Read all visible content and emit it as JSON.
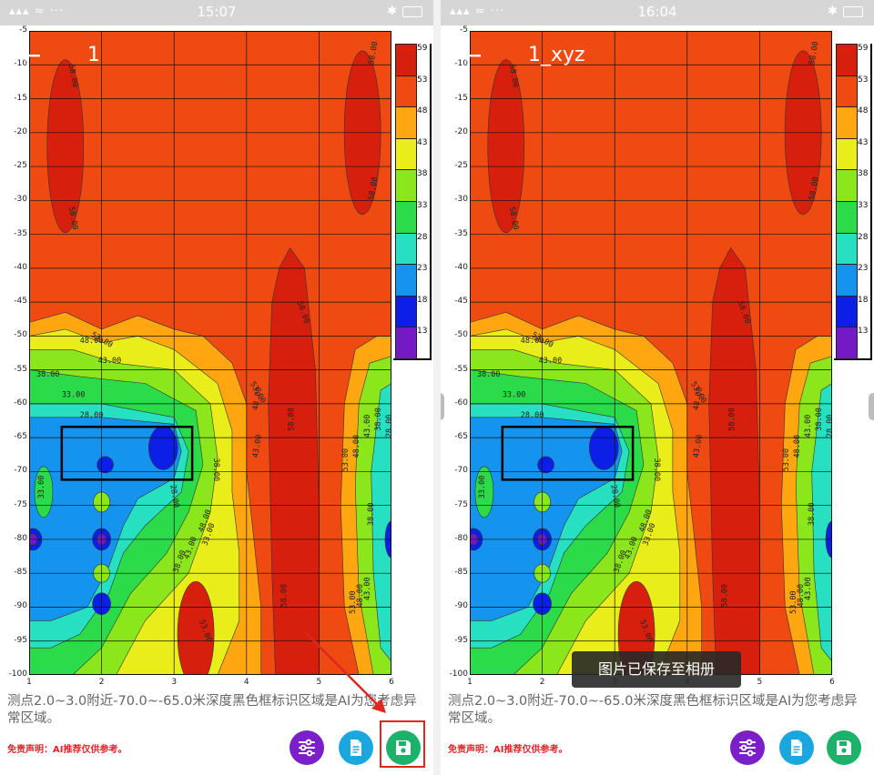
{
  "screens": [
    {
      "status": {
        "time": "15:07",
        "left": "▴▴▴ ≈ ···",
        "right": "✱"
      },
      "header": {
        "title": "1"
      },
      "description": "测点2.0~3.0附近-70.0~-65.0米深度黑色框标识区域是AI为您考虑异常区域。",
      "disclaimer": "免责声明：AI推荐仅供参考。",
      "toast": ""
    },
    {
      "status": {
        "time": "16:04",
        "left": "▴▴▴ ≈ ···",
        "right": "✱"
      },
      "header": {
        "title": "1_xyz"
      },
      "description": "测点2.0~3.0附近-70.0~-65.0米深度黑色框标识区域是AI为您考虑异常区域。",
      "disclaimer": "免责声明：AI推荐仅供参考。",
      "toast": "图片已保存至相册"
    }
  ],
  "chart_data": {
    "type": "heatmap",
    "x_ticks": [
      "1",
      "2",
      "3",
      "4",
      "5",
      "6"
    ],
    "y_ticks": [
      "-5",
      "-10",
      "-15",
      "-20",
      "-25",
      "-30",
      "-35",
      "-40",
      "-45",
      "-50",
      "-55",
      "-60",
      "-65",
      "-70",
      "-75",
      "-80",
      "-85",
      "-90",
      "-95",
      "-100"
    ],
    "xlim": [
      1,
      6
    ],
    "ylim": [
      -100,
      -5
    ],
    "colorbar": {
      "levels": [
        "59",
        "53",
        "48",
        "43",
        "38",
        "33",
        "28",
        "23",
        "18",
        "13"
      ],
      "colors": [
        "#d6200d",
        "#ee4a12",
        "#ffa610",
        "#e9ee1b",
        "#8ce61c",
        "#2bdb4a",
        "#27e0c2",
        "#1594ef",
        "#0b1fe6",
        "#7419c6"
      ]
    },
    "contour_labels": [
      "58.00",
      "58.00",
      "58.00",
      "58.00",
      "53.00",
      "48.00",
      "43.00",
      "38.00",
      "33.00",
      "28.00",
      "53.00",
      "48.00",
      "43.00",
      "38.00",
      "33.00",
      "28.00",
      "53.00",
      "48.00",
      "43.00",
      "38.00",
      "28.00",
      "33.00",
      "38.00",
      "43.00",
      "48.00",
      "53.00",
      "58.00",
      "38.00",
      "43.00",
      "48.00",
      "53.00",
      "58.00",
      "58.00"
    ],
    "anomaly_box": {
      "x": [
        1.45,
        3.25
      ],
      "y": [
        -71.2,
        -63.4
      ]
    }
  },
  "icons": {
    "back": "arrow-left-icon",
    "filter": "sliders-icon",
    "doc": "document-icon",
    "save": "save-icon"
  }
}
